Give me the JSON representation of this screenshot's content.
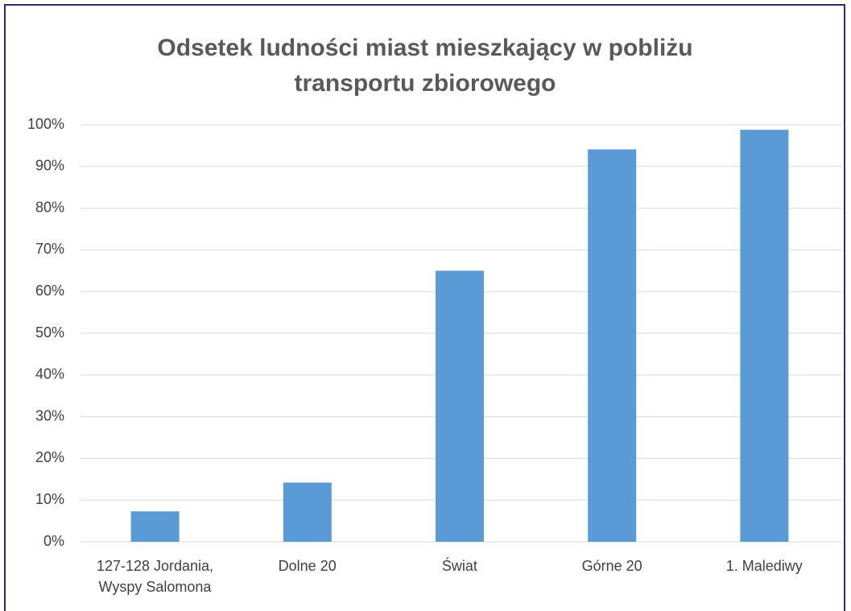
{
  "chart_data": {
    "type": "bar",
    "title": "Odsetek ludności miast mieszkający w pobliżu transportu zbiorowego",
    "categories": [
      "127-128 Jordania,\nWyspy Salomona",
      "Dolne 20",
      "Świat",
      "Górne 20",
      "1. Malediwy"
    ],
    "values": [
      7.3,
      14.2,
      65,
      94.1,
      98.8
    ],
    "color": "#5b9bd5",
    "ylim": [
      0,
      100
    ],
    "yticks": [
      {
        "value": 0,
        "label": "0%"
      },
      {
        "value": 10,
        "label": "10%"
      },
      {
        "value": 20,
        "label": "20%"
      },
      {
        "value": 30,
        "label": "30%"
      },
      {
        "value": 40,
        "label": "40%"
      },
      {
        "value": 50,
        "label": "50%"
      },
      {
        "value": 60,
        "label": "60%"
      },
      {
        "value": 70,
        "label": "70%"
      },
      {
        "value": 80,
        "label": "80%"
      },
      {
        "value": 90,
        "label": "90%"
      },
      {
        "value": 100,
        "label": "100%"
      }
    ],
    "grid": true
  }
}
